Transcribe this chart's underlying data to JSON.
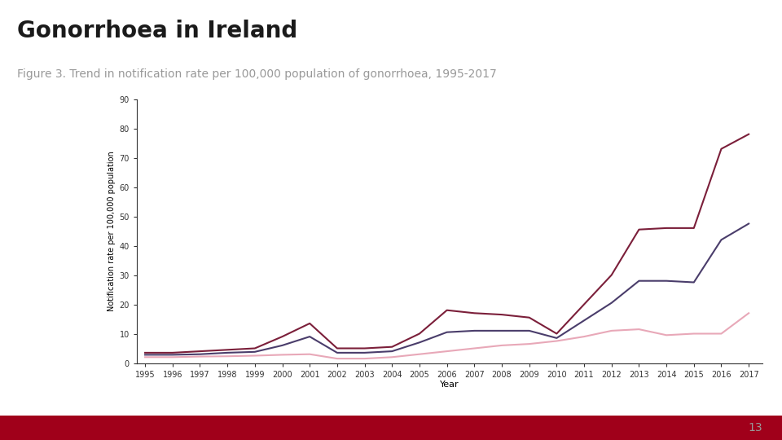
{
  "title": "Gonorrhoea in Ireland",
  "subtitle": "Figure 3. Trend in notification rate per 100,000 population of gonorrhoea, 1995-2017",
  "xlabel": "Year",
  "ylabel": "Notification rate per 100,000 population",
  "years": [
    1995,
    1996,
    1997,
    1998,
    1999,
    2000,
    2001,
    2002,
    2003,
    2004,
    2005,
    2006,
    2007,
    2008,
    2009,
    2010,
    2011,
    2012,
    2013,
    2014,
    2015,
    2016,
    2017
  ],
  "males": [
    3.5,
    3.5,
    4.0,
    4.5,
    5.0,
    9.0,
    13.5,
    5.0,
    5.0,
    5.5,
    10.0,
    18.0,
    17.0,
    16.5,
    15.5,
    10.0,
    20.0,
    30.0,
    45.5,
    46.0,
    46.0,
    73.0,
    78.0
  ],
  "females": [
    2.0,
    2.0,
    2.2,
    2.3,
    2.5,
    2.8,
    3.0,
    1.5,
    1.5,
    2.0,
    3.0,
    4.0,
    5.0,
    6.0,
    6.5,
    7.5,
    9.0,
    11.0,
    11.5,
    9.5,
    10.0,
    10.0,
    17.0
  ],
  "total": [
    2.8,
    2.8,
    3.0,
    3.5,
    3.8,
    6.0,
    9.0,
    3.5,
    3.5,
    4.0,
    7.0,
    10.5,
    11.0,
    11.0,
    11.0,
    8.5,
    14.5,
    20.5,
    28.0,
    28.0,
    27.5,
    42.0,
    47.5
  ],
  "males_color": "#7B1F3A",
  "females_color": "#E8A8B8",
  "total_color": "#4A3D6B",
  "ylim": [
    0,
    90
  ],
  "yticks": [
    0,
    10,
    20,
    30,
    40,
    50,
    60,
    70,
    80,
    90
  ],
  "title_fontsize": 20,
  "subtitle_fontsize": 10,
  "axis_tick_fontsize": 7,
  "ylabel_fontsize": 7,
  "xlabel_fontsize": 8,
  "legend_fontsize": 8,
  "bg_color": "#FFFFFF",
  "bottom_bar_color": "#A0001A",
  "title_color": "#1A1A1A",
  "subtitle_color": "#999999",
  "page_number": "13",
  "page_number_color": "#999999",
  "spine_color": "#333333",
  "tick_color": "#333333"
}
